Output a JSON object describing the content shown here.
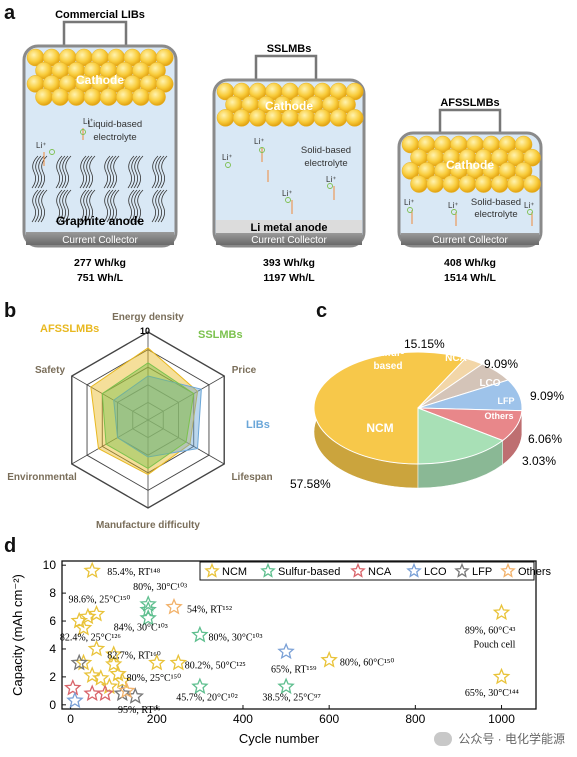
{
  "panel_a": {
    "letter": "a",
    "cells": [
      {
        "name": "Commercial LIBs",
        "cathode": "Cathode",
        "electrolyte": "Liquid-based electrolyte",
        "anode": "Graphite anode",
        "collector": "Current Collector",
        "li_label": "Li⁺",
        "gravimetric": "277 Wh/kg",
        "volumetric": "751 Wh/L"
      },
      {
        "name": "SSLMBs",
        "cathode": "Cathode",
        "electrolyte": "Solid-based electrolyte",
        "anode": "Li metal anode",
        "collector": "Current Collector",
        "li_label": "Li⁺",
        "gravimetric": "393 Wh/kg",
        "volumetric": "1197 Wh/L"
      },
      {
        "name": "AFSSLMBs",
        "cathode": "Cathode",
        "electrolyte": "Solid-based electrolyte",
        "anode": "",
        "collector": "Current Collector",
        "li_label": "Li⁺",
        "gravimetric": "408 Wh/kg",
        "volumetric": "1514 Wh/L"
      }
    ]
  },
  "panel_b": {
    "letter": "b",
    "axes": [
      "Energy density",
      "Price",
      "Lifespan",
      "Manufacture difficulty",
      "Environmental",
      "Safety"
    ],
    "max_tick": "10",
    "series": [
      {
        "name": "AFSSLMBs",
        "color": "#e8b820",
        "values": [
          8.2,
          6.5,
          5.5,
          6.2,
          6.5,
          7.5
        ]
      },
      {
        "name": "SSLMBs",
        "color": "#7cc24e",
        "values": [
          6.5,
          6.0,
          5.0,
          5.5,
          5.5,
          6.0
        ]
      },
      {
        "name": "LIBs",
        "color": "#6aa6d8",
        "values": [
          5.0,
          7.0,
          6.5,
          4.2,
          4.0,
          4.5
        ]
      }
    ]
  },
  "panel_c": {
    "letter": "c",
    "slices": [
      {
        "label": "NCM",
        "pct": "57.58%",
        "value": 57.58,
        "color": "#f7c84a"
      },
      {
        "label": "Others",
        "pct": "3.03%",
        "value": 3.03,
        "color": "#f2d6a8"
      },
      {
        "label": "LFP",
        "pct": "6.06%",
        "value": 6.06,
        "color": "#d4c4b8"
      },
      {
        "label": "LCO",
        "pct": "9.09%",
        "value": 9.09,
        "color": "#9ec3ea"
      },
      {
        "label": "NCA",
        "pct": "9.09%",
        "value": 9.09,
        "color": "#e8878a"
      },
      {
        "label": "Sulfur-based",
        "pct": "15.15%",
        "value": 15.15,
        "color": "#a8e0b6"
      }
    ]
  },
  "chart_data": {
    "type": "scatter",
    "panel_letter": "d",
    "xlabel": "Cycle number",
    "ylabel": "Capacity (mAh cm⁻²)",
    "xlim": [
      -20,
      1080
    ],
    "ylim": [
      -0.3,
      10.3
    ],
    "xticks": [
      0,
      200,
      400,
      600,
      800,
      1000
    ],
    "yticks": [
      0,
      2,
      4,
      6,
      8,
      10
    ],
    "legend": [
      "NCM",
      "Sulfur-based",
      "NCA",
      "LCO",
      "LFP",
      "Others"
    ],
    "series": [
      {
        "name": "NCM",
        "color": "#e9c33a",
        "points": [
          [
            50,
            9.6
          ],
          [
            40,
            6.3
          ],
          [
            60,
            6.5
          ],
          [
            20,
            6.0
          ],
          [
            30,
            5.5
          ],
          [
            60,
            4.0
          ],
          [
            100,
            3.6
          ],
          [
            100,
            2.9
          ],
          [
            110,
            2.2
          ],
          [
            70,
            1.9
          ],
          [
            90,
            1.3
          ],
          [
            120,
            1.7
          ],
          [
            200,
            3.0
          ],
          [
            250,
            3.0
          ],
          [
            600,
            3.2
          ],
          [
            1000,
            6.6
          ],
          [
            1000,
            2.0
          ],
          [
            30,
            3.0
          ],
          [
            50,
            2.1
          ]
        ]
      },
      {
        "name": "Sulfur-based",
        "color": "#5fbf8f",
        "points": [
          [
            180,
            7.2
          ],
          [
            180,
            6.8
          ],
          [
            180,
            6.2
          ],
          [
            300,
            5.0
          ],
          [
            300,
            1.3
          ],
          [
            500,
            1.3
          ]
        ]
      },
      {
        "name": "NCA",
        "color": "#d9656b",
        "points": [
          [
            5,
            1.2
          ],
          [
            50,
            0.8
          ],
          [
            80,
            0.8
          ]
        ]
      },
      {
        "name": "LCO",
        "color": "#7aa0d6",
        "points": [
          [
            500,
            3.8
          ],
          [
            10,
            0.3
          ]
        ]
      },
      {
        "name": "LFP",
        "color": "#777777",
        "points": [
          [
            20,
            3.0
          ],
          [
            120,
            0.8
          ],
          [
            150,
            0.6
          ]
        ]
      },
      {
        "name": "Others",
        "color": "#f2b26b",
        "points": [
          [
            240,
            7.0
          ],
          [
            130,
            1.0
          ]
        ]
      }
    ],
    "annotations": [
      {
        "text": "85.4%, RT¹⁴⁸",
        "x": 85,
        "y": 9.6
      },
      {
        "text": "98.6%, 25°C¹⁵⁰",
        "x": -5,
        "y": 7.6
      },
      {
        "text": "80%, 30°C¹⁰³",
        "x": 145,
        "y": 8.5
      },
      {
        "text": "84%, 30°C¹⁰³",
        "x": 100,
        "y": 5.6
      },
      {
        "text": "54%, RT¹⁵²",
        "x": 270,
        "y": 6.9
      },
      {
        "text": "82.4%, 25°C¹²⁶",
        "x": -25,
        "y": 4.9
      },
      {
        "text": "80%, 30°C¹⁰³",
        "x": 320,
        "y": 4.9
      },
      {
        "text": "82.7%, RT¹⁶⁰",
        "x": 85,
        "y": 3.6
      },
      {
        "text": "80%, 25°C¹⁵⁰",
        "x": 130,
        "y": 2.0
      },
      {
        "text": "80.2%, 50°C¹²⁵",
        "x": 265,
        "y": 2.9
      },
      {
        "text": "65%, RT¹⁵⁹",
        "x": 465,
        "y": 2.6
      },
      {
        "text": "80%, 60°C¹⁵⁰",
        "x": 625,
        "y": 3.1
      },
      {
        "text": "89%, 60°C⁴³",
        "x": 915,
        "y": 5.4
      },
      {
        "text": "Pouch cell",
        "x": 935,
        "y": 4.4
      },
      {
        "text": "65%, 30°C¹⁴⁴",
        "x": 915,
        "y": 0.9
      },
      {
        "text": "95%, RT⁹⁶",
        "x": 110,
        "y": -0.3
      },
      {
        "text": "45.7%, 20°C¹⁰²",
        "x": 245,
        "y": 0.6
      },
      {
        "text": "38.5%, 25°C⁹⁷",
        "x": 445,
        "y": 0.6
      }
    ]
  },
  "watermark": "公众号 · 电化学能源"
}
